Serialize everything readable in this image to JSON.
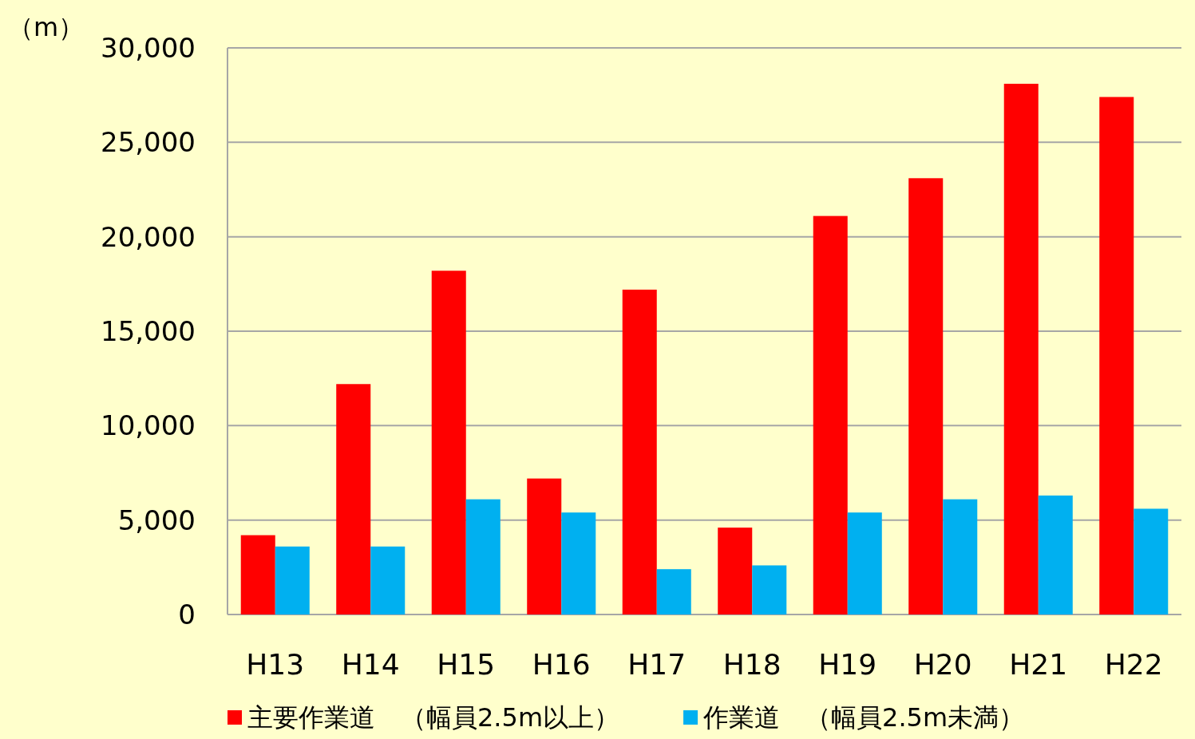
{
  "chart_data": {
    "type": "bar",
    "ylabel": "（m）",
    "categories": [
      "H13",
      "H14",
      "H15",
      "H16",
      "H17",
      "H18",
      "H19",
      "H20",
      "H21",
      "H22"
    ],
    "series": [
      {
        "name": "主要作業道　（幅員2.5m以上）",
        "color": "#ff0000",
        "values": [
          4200,
          12200,
          18200,
          7200,
          17200,
          4600,
          21100,
          23100,
          28100,
          27400
        ]
      },
      {
        "name": "作業道　（幅員2.5m未満）",
        "color": "#00b0f0",
        "values": [
          3600,
          3600,
          6100,
          5400,
          2400,
          2600,
          5400,
          6100,
          6300,
          5600
        ]
      }
    ],
    "ylim": [
      0,
      30000
    ],
    "yticks": [
      {
        "value": 0,
        "label": "0"
      },
      {
        "value": 5000,
        "label": "5,000"
      },
      {
        "value": 10000,
        "label": "10,000"
      },
      {
        "value": 15000,
        "label": "15,000"
      },
      {
        "value": 20000,
        "label": "20,000"
      },
      {
        "value": 25000,
        "label": "25,000"
      },
      {
        "value": 30000,
        "label": "30,000"
      }
    ],
    "grid": "y",
    "legend": "bottom"
  }
}
